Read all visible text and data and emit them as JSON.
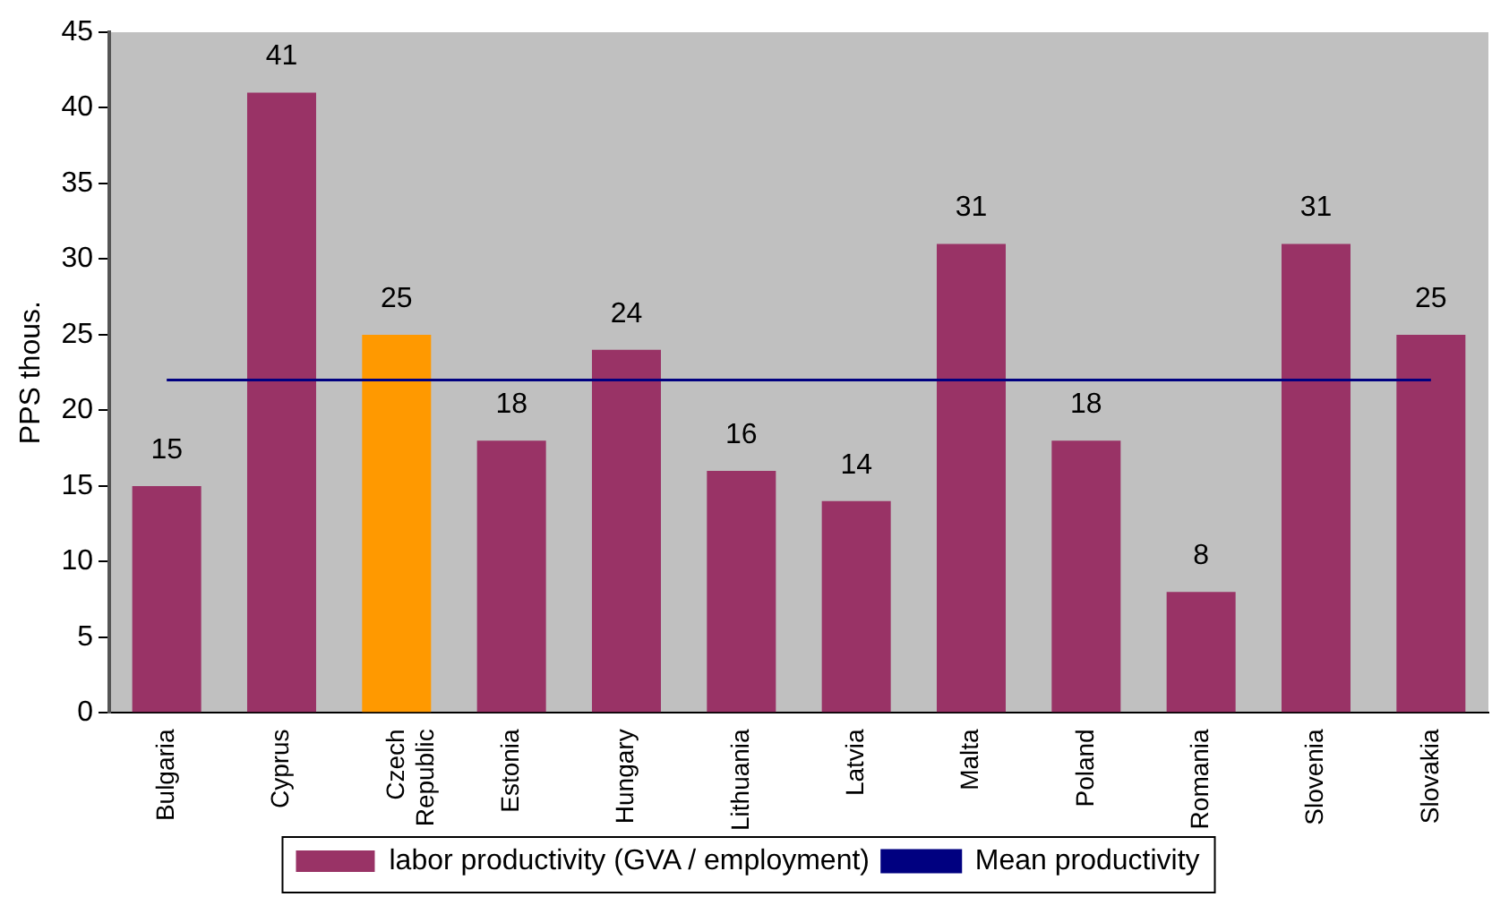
{
  "chart_data": {
    "type": "bar",
    "ylabel": "PPS thous.",
    "categories": [
      "Bulgaria",
      "Cyprus",
      "Czech Republic",
      "Estonia",
      "Hungary",
      "Lithuania",
      "Latvia",
      "Malta",
      "Poland",
      "Romania",
      "Slovenia",
      "Slovakia"
    ],
    "series": [
      {
        "name": "labor productivity (GVA / employment)",
        "color": "#993366",
        "colors": [
          "#993366",
          "#993366",
          "#ff9900",
          "#993366",
          "#993366",
          "#993366",
          "#993366",
          "#993366",
          "#993366",
          "#993366",
          "#993366",
          "#993366"
        ],
        "values": [
          15,
          41,
          25,
          18,
          24,
          16,
          14,
          31,
          18,
          8,
          31,
          25
        ],
        "value_labels": [
          "15",
          "41",
          "25",
          "18",
          "24",
          "16",
          "14",
          "31",
          "18",
          "8",
          "31",
          "25"
        ]
      },
      {
        "name": "Mean productivity",
        "type": "line",
        "color": "#000080",
        "values": [
          22,
          22,
          22,
          22,
          22,
          22,
          22,
          22,
          22,
          22,
          22,
          22
        ]
      }
    ],
    "ylim": [
      0,
      45
    ],
    "yticks": [
      0,
      5,
      10,
      15,
      20,
      25,
      30,
      35,
      40,
      45
    ],
    "grid": false,
    "legend": "bottom",
    "marker": "none"
  }
}
